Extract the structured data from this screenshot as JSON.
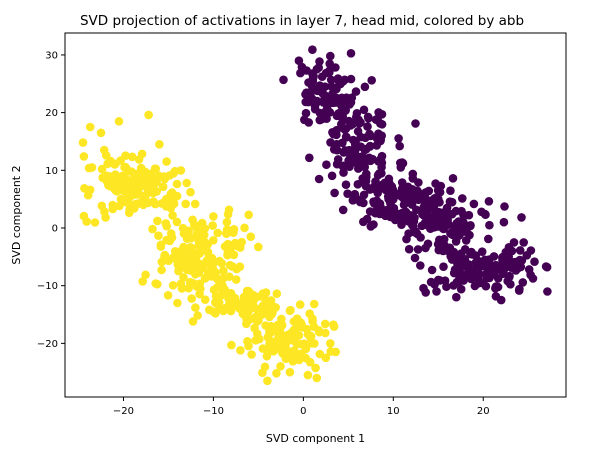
{
  "chart_data": {
    "type": "scatter",
    "title": "SVD projection of activations in layer 7, head mid, colored by abb",
    "xlabel": "SVD component 1",
    "ylabel": "SVD component 2",
    "xlim": [
      -26.5,
      29.2
    ],
    "ylim": [
      -29.3,
      33.8
    ],
    "xticks": [
      -20,
      -10,
      0,
      10,
      20
    ],
    "yticks": [
      -20,
      -10,
      0,
      10,
      20,
      30
    ],
    "xtick_labels": [
      "−20",
      "−10",
      "0",
      "10",
      "20"
    ],
    "ytick_labels": [
      "−20",
      "−10",
      "0",
      "10",
      "20",
      "30"
    ],
    "grid": false,
    "legend": "none",
    "series": [
      {
        "color": "#440154",
        "clusters": [
          {
            "center": [
              2.5,
              23.0
            ],
            "spread": [
              1.8,
              3.0
            ],
            "count": 90
          },
          {
            "center": [
              6.0,
              14.5
            ],
            "spread": [
              2.2,
              2.8
            ],
            "count": 100
          },
          {
            "center": [
              10.5,
              5.0
            ],
            "spread": [
              2.8,
              2.4
            ],
            "count": 150
          },
          {
            "center": [
              15.5,
              0.5
            ],
            "spread": [
              3.0,
              2.5
            ],
            "count": 100
          },
          {
            "center": [
              20.0,
              -7.0
            ],
            "spread": [
              3.0,
              2.0
            ],
            "count": 130
          }
        ],
        "points": [
          [
            -0.5,
            29.0
          ],
          [
            1.5,
            27.5
          ],
          [
            1.0,
            30.9
          ],
          [
            3.0,
            29.8
          ],
          [
            7.6,
            25.6
          ],
          [
            5.5,
            4.8
          ],
          [
            6.6,
            8.6
          ],
          [
            7.8,
            0.6
          ],
          [
            19.8,
            2.8
          ],
          [
            20.2,
            2.4
          ],
          [
            24.5,
            -2.5
          ],
          [
            25.3,
            -3.9
          ],
          [
            27.1,
            -6.8
          ],
          [
            22.0,
            -12.5
          ],
          [
            17.0,
            -12.0
          ],
          [
            13.0,
            -6.5
          ],
          [
            15.0,
            -9.0
          ],
          [
            14.8,
            -11.0
          ]
        ]
      },
      {
        "color": "#fde725",
        "clusters": [
          {
            "center": [
              -18.5,
              7.0
            ],
            "spread": [
              2.6,
              2.5
            ],
            "count": 160
          },
          {
            "center": [
              -12.0,
              -5.0
            ],
            "spread": [
              2.4,
              3.6
            ],
            "count": 170
          },
          {
            "center": [
              -6.5,
              -13.0
            ],
            "spread": [
              2.4,
              2.0
            ],
            "count": 90
          },
          {
            "center": [
              -1.5,
              -19.5
            ],
            "spread": [
              2.3,
              2.2
            ],
            "count": 110
          }
        ],
        "points": [
          [
            -24.5,
            14.8
          ],
          [
            -23.7,
            17.5
          ],
          [
            -22.5,
            16.5
          ],
          [
            -20.5,
            18.5
          ],
          [
            -17.2,
            19.6
          ],
          [
            -24.4,
            12.4
          ],
          [
            -23.5,
            10.5
          ],
          [
            -16.0,
            14.5
          ],
          [
            -15.2,
            11.5
          ],
          [
            -15.4,
            8.5
          ],
          [
            -4.0,
            -26.5
          ],
          [
            -3.0,
            -25.2
          ],
          [
            0.5,
            -25.5
          ],
          [
            1.5,
            -26.0
          ],
          [
            -1.5,
            -25.0
          ],
          [
            -8.0,
            -20.3
          ],
          [
            -7.0,
            -21.2
          ],
          [
            2.5,
            -22.5
          ],
          [
            3.0,
            -20.0
          ],
          [
            -12.0,
            -13.8
          ],
          [
            -13.5,
            -10.5
          ],
          [
            -14.0,
            -13.0
          ],
          [
            -8.5,
            1.0
          ],
          [
            -10.0,
            2.0
          ]
        ]
      }
    ]
  }
}
